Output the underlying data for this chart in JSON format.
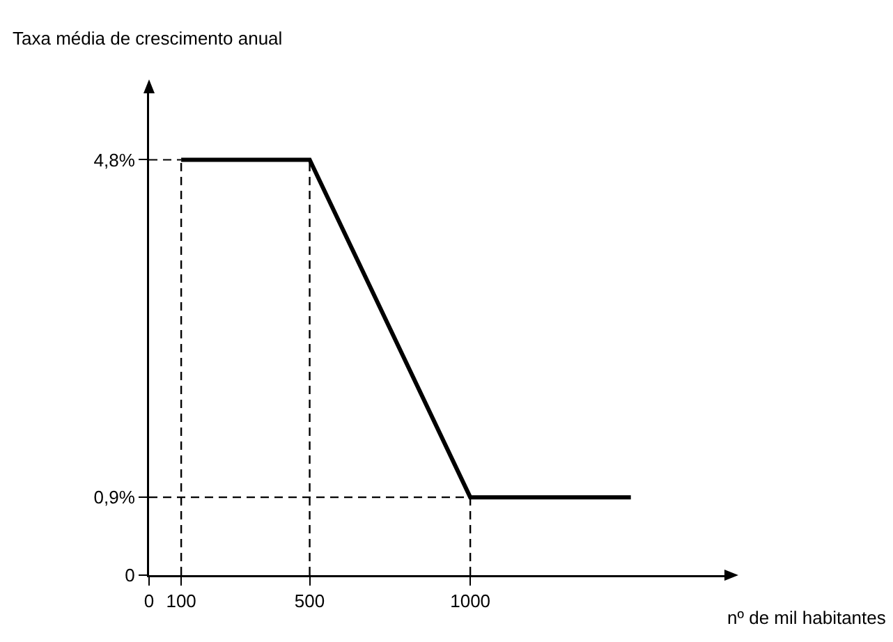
{
  "chart_data": {
    "type": "line",
    "xlabel": "nº de mil habitantes",
    "ylabel": "Taxa média de crescimento anual",
    "series": [
      {
        "color": "#000000",
        "x": [
          100,
          500,
          1000,
          1500
        ],
        "values": [
          4.8,
          4.8,
          0.9,
          0.9
        ]
      },
      {
        "color": "#000000",
        "line_style": "dashed",
        "x": [
          0,
          100
        ],
        "values": [
          4.8,
          4.8
        ]
      }
    ],
    "xlim": [
      0,
      1800
    ],
    "xticks": [
      0,
      100,
      500,
      1000
    ],
    "ylim": [
      0,
      5.6
    ],
    "yticks": [
      0,
      {
        "value": 0.9,
        "label": "0,9%"
      },
      {
        "value": 4.8,
        "label": "4,8%"
      }
    ],
    "ref_lines": [
      {
        "axis": "x",
        "value": 100,
        "color": "#000000",
        "line_style": "dashed"
      },
      {
        "axis": "x",
        "value": 500,
        "color": "#000000",
        "line_style": "dashed"
      },
      {
        "axis": "x",
        "value": 1000,
        "color": "#000000",
        "line_style": "dashed"
      },
      {
        "axis": "y",
        "value": 0.9,
        "color": "#000000",
        "line_style": "dashed"
      }
    ],
    "grid": false,
    "marker": "none",
    "line_style": "solid"
  }
}
